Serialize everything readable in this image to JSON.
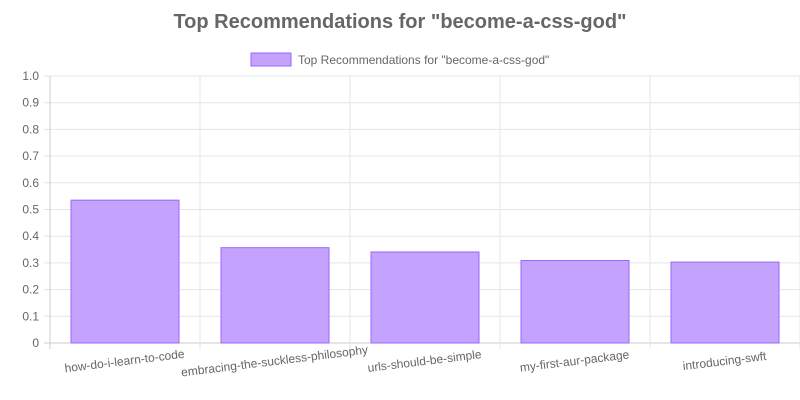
{
  "chart_data": {
    "type": "bar",
    "title": "Top Recommendations for \"become-a-css-god\"",
    "categories": [
      "how-do-i-learn-to-code",
      "embracing-the-suckless-philosophy",
      "urls-should-be-simple",
      "my-first-aur-package",
      "introducing-swft"
    ],
    "series": [
      {
        "name": "Top Recommendations for \"become-a-css-god\"",
        "values": [
          0.535,
          0.357,
          0.341,
          0.309,
          0.303
        ],
        "color": "#C4A3FF",
        "border_color": "#9966FF"
      }
    ],
    "ylim": [
      0,
      1.0
    ],
    "yticks": [
      "0",
      "0.1",
      "0.2",
      "0.3",
      "0.4",
      "0.5",
      "0.6",
      "0.7",
      "0.8",
      "0.9",
      "1.0"
    ],
    "legend_position": "top",
    "grid": true
  }
}
